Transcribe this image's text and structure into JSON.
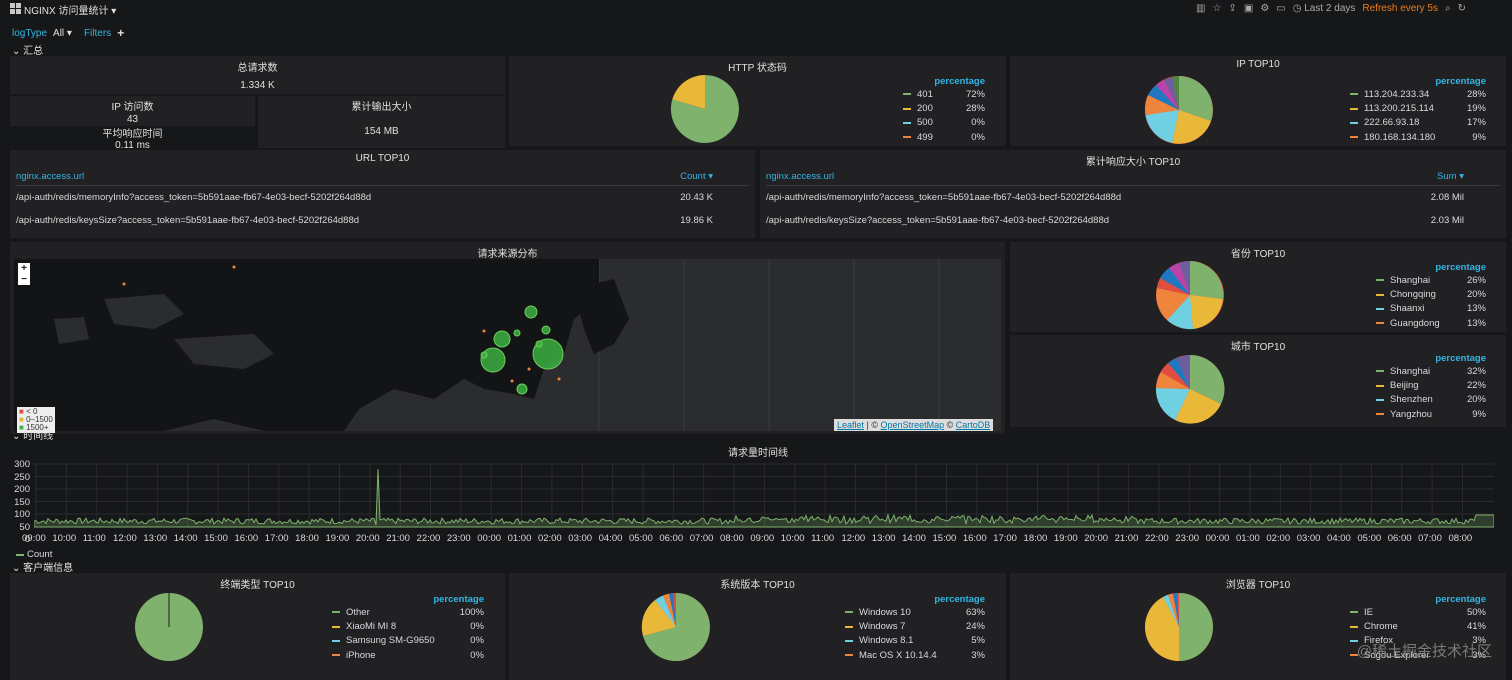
{
  "topbar": {
    "title": "NGINX 访问量统计 ▾",
    "time_range": "Last 2 days",
    "refresh": "Refresh every 5s"
  },
  "vars": {
    "logtype_label": "logType",
    "logtype_value": "All ▾",
    "filters_label": "Filters",
    "add": "+"
  },
  "rows": {
    "summary": "汇总",
    "timeline": "时间线",
    "client": "客户端信息"
  },
  "panels": {
    "total_requests": {
      "title": "总请求数",
      "value": "1.334 K"
    },
    "ip_count": {
      "title": "IP 访问数",
      "value": "43"
    },
    "output_size": {
      "title": "累计输出大小",
      "value": "154 MB"
    },
    "avg_resp": {
      "title": "平均响应时间",
      "value": "0.11 ms"
    },
    "http_status": {
      "title": "HTTP 状态码",
      "legend_header": "percentage",
      "items": [
        {
          "name": "401",
          "value": "72%",
          "color": "#7eb26d"
        },
        {
          "name": "200",
          "value": "28%",
          "color": "#eab839"
        },
        {
          "name": "500",
          "value": "0%",
          "color": "#6ed0e0"
        },
        {
          "name": "499",
          "value": "0%",
          "color": "#ef843c"
        }
      ]
    },
    "ip_top10": {
      "title": "IP TOP10",
      "legend_header": "percentage",
      "items": [
        {
          "name": "113.204.233.34",
          "value": "28%",
          "color": "#7eb26d"
        },
        {
          "name": "113.200.215.114",
          "value": "19%",
          "color": "#eab839"
        },
        {
          "name": "222.66.93.18",
          "value": "17%",
          "color": "#6ed0e0"
        },
        {
          "name": "180.168.134.180",
          "value": "9%",
          "color": "#ef843c"
        }
      ]
    },
    "url_top10": {
      "title": "URL TOP10",
      "col_url": "nginx.access.url",
      "col_val": "Count ▾",
      "rows": [
        {
          "url": "/api-auth/redis/memoryInfo?access_token=5b591aae-fb67-4e03-becf-5202f264d88d",
          "val": "20.43 K"
        },
        {
          "url": "/api-auth/redis/keysSize?access_token=5b591aae-fb67-4e03-becf-5202f264d88d",
          "val": "19.86 K"
        }
      ]
    },
    "resp_size_top10": {
      "title": "累计响应大小 TOP10",
      "col_url": "nginx.access.url",
      "col_val": "Sum ▾",
      "rows": [
        {
          "url": "/api-auth/redis/memoryInfo?access_token=5b591aae-fb67-4e03-becf-5202f264d88d",
          "val": "2.08 Mil"
        },
        {
          "url": "/api-auth/redis/keysSize?access_token=5b591aae-fb67-4e03-becf-5202f264d88d",
          "val": "2.03 Mil"
        }
      ]
    },
    "geo_map": {
      "title": "请求来源分布",
      "zoom_in": "+",
      "zoom_out": "−",
      "legend": [
        "< 0",
        "0–1500",
        "1500+"
      ],
      "attribution_leaflet": "Leaflet",
      "attribution_sep": "| ©",
      "attribution_osm": "OpenStreetMap",
      "attribution_sep2": "©",
      "attribution_carto": "CartoDB"
    },
    "province_top10": {
      "title": "省份 TOP10",
      "legend_header": "percentage",
      "items": [
        {
          "name": "Shanghai",
          "value": "26%",
          "color": "#7eb26d"
        },
        {
          "name": "Chongqing",
          "value": "20%",
          "color": "#eab839"
        },
        {
          "name": "Shaanxi",
          "value": "13%",
          "color": "#6ed0e0"
        },
        {
          "name": "Guangdong",
          "value": "13%",
          "color": "#ef843c"
        }
      ]
    },
    "city_top10": {
      "title": "城市 TOP10",
      "legend_header": "percentage",
      "items": [
        {
          "name": "Shanghai",
          "value": "32%",
          "color": "#7eb26d"
        },
        {
          "name": "Beijing",
          "value": "22%",
          "color": "#eab839"
        },
        {
          "name": "Shenzhen",
          "value": "20%",
          "color": "#6ed0e0"
        },
        {
          "name": "Yangzhou",
          "value": "9%",
          "color": "#ef843c"
        }
      ]
    },
    "timeline": {
      "title": "请求量时间线",
      "legend": "Count",
      "y_ticks": [
        "300",
        "250",
        "200",
        "150",
        "100",
        "50",
        "0"
      ],
      "x_ticks": [
        "09:00",
        "10:00",
        "11:00",
        "12:00",
        "13:00",
        "14:00",
        "15:00",
        "16:00",
        "17:00",
        "18:00",
        "19:00",
        "20:00",
        "21:00",
        "22:00",
        "23:00",
        "00:00",
        "01:00",
        "02:00",
        "03:00",
        "04:00",
        "05:00",
        "06:00",
        "07:00",
        "08:00",
        "09:00",
        "10:00",
        "11:00",
        "12:00",
        "13:00",
        "14:00",
        "15:00",
        "16:00",
        "17:00",
        "18:00",
        "19:00",
        "20:00",
        "21:00",
        "22:00",
        "23:00",
        "00:00",
        "01:00",
        "02:00",
        "03:00",
        "04:00",
        "05:00",
        "06:00",
        "07:00",
        "08:00"
      ]
    },
    "device_top10": {
      "title": "终端类型 TOP10",
      "legend_header": "percentage",
      "items": [
        {
          "name": "Other",
          "value": "100%",
          "color": "#7eb26d"
        },
        {
          "name": "XiaoMi MI 8",
          "value": "0%",
          "color": "#eab839"
        },
        {
          "name": "Samsung SM-G9650",
          "value": "0%",
          "color": "#6ed0e0"
        },
        {
          "name": "iPhone",
          "value": "0%",
          "color": "#ef843c"
        }
      ]
    },
    "os_top10": {
      "title": "系统版本 TOP10",
      "legend_header": "percentage",
      "items": [
        {
          "name": "Windows 10",
          "value": "63%",
          "color": "#7eb26d"
        },
        {
          "name": "Windows 7",
          "value": "24%",
          "color": "#eab839"
        },
        {
          "name": "Windows 8.1",
          "value": "5%",
          "color": "#6ed0e0"
        },
        {
          "name": "Mac OS X 10.14.4",
          "value": "3%",
          "color": "#ef843c"
        }
      ]
    },
    "browser_top10": {
      "title": "浏览器 TOP10",
      "legend_header": "percentage",
      "items": [
        {
          "name": "IE",
          "value": "50%",
          "color": "#7eb26d"
        },
        {
          "name": "Chrome",
          "value": "41%",
          "color": "#eab839"
        },
        {
          "name": "Firefox",
          "value": "3%",
          "color": "#6ed0e0"
        },
        {
          "name": "Sogou Explorer",
          "value": "3%",
          "color": "#ef843c"
        }
      ]
    }
  },
  "watermark": "@稀土掘金技术社区"
}
